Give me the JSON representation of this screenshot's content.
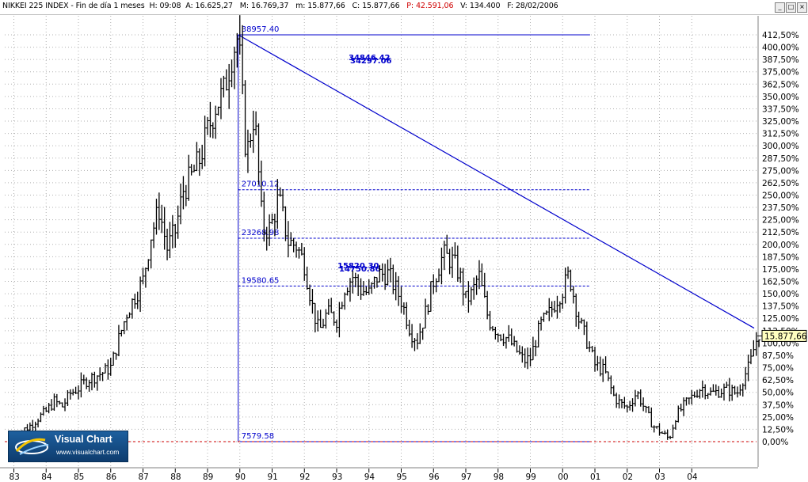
{
  "header": {
    "symbol": "NIKKEI 225 INDEX",
    "period": "Fin de día 1 meses",
    "h_label": "H:",
    "h_value": "09:08",
    "a_label": "A:",
    "a_value": "16.625,27",
    "m_label": "M:",
    "m_value": "16.769,37",
    "min_label": "m:",
    "min_value": "15.877,66",
    "c_label": "C:",
    "c_value": "15.877,66",
    "p_label": "P:",
    "p_value": "42.591,06",
    "v_label": "V:",
    "v_value": "134.400",
    "f_label": "F:",
    "f_value": "28/02/2006"
  },
  "window_buttons": [
    "_",
    "□",
    "×"
  ],
  "logo": {
    "name": "Visual Chart",
    "url": "www.visualchart.com"
  },
  "colors": {
    "bars": "#000000",
    "fib_lines": "#0000cc",
    "zero_line": "#cc0000",
    "price_box": "#ffffc0"
  },
  "chart_data": {
    "type": "ohlc",
    "period": "monthly",
    "y_axis_unit": "percent",
    "y_ticks": [
      "412,50%",
      "400,00%",
      "387,50%",
      "375,00%",
      "362,50%",
      "350,00%",
      "337,50%",
      "325,00%",
      "312,50%",
      "300,00%",
      "287,50%",
      "275,00%",
      "262,50%",
      "250,00%",
      "237,50%",
      "225,00%",
      "212,50%",
      "200,00%",
      "187,50%",
      "175,00%",
      "162,50%",
      "150,00%",
      "137,50%",
      "125,00%",
      "112,50%",
      "100,00%",
      "87,50%",
      "75,00%",
      "62,50%",
      "50,00%",
      "37,50%",
      "25,00%",
      "12,50%",
      "0,00%"
    ],
    "x_ticks": [
      "83",
      "84",
      "85",
      "86",
      "87",
      "88",
      "89",
      "90",
      "91",
      "92",
      "93",
      "94",
      "95",
      "96",
      "97",
      "98",
      "99",
      "00",
      "01",
      "02",
      "03",
      "04"
    ],
    "last_price": "15.877,66",
    "annotations": [
      {
        "label": "38957.40",
        "value": 38957.4
      },
      {
        "label": "27010.12",
        "value": 27010.12
      },
      {
        "label": "23268.98",
        "value": 23268.98
      },
      {
        "label": "19580.65",
        "value": 19580.65
      },
      {
        "label": "7579.58",
        "value": 7579.58
      }
    ],
    "overlap_labels": [
      "34846.42",
      "34297.06",
      "15820.30",
      "14750.86"
    ],
    "trendline": {
      "from": {
        "date": "1989-12",
        "price": 38957.4
      },
      "to": {
        "date": "2006-02",
        "price": 16100
      }
    },
    "series": [
      {
        "values": [
          [
            1983.0,
            8000
          ],
          [
            1983.25,
            8400
          ],
          [
            1983.5,
            8800
          ],
          [
            1983.75,
            9400
          ],
          [
            1984.0,
            9900
          ],
          [
            1984.25,
            10700
          ],
          [
            1984.5,
            10300
          ],
          [
            1984.75,
            11300
          ],
          [
            1985.0,
            11700
          ],
          [
            1985.25,
            12300
          ],
          [
            1985.5,
            12600
          ],
          [
            1985.75,
            12900
          ],
          [
            1986.0,
            13300
          ],
          [
            1986.25,
            15500
          ],
          [
            1986.5,
            17500
          ],
          [
            1986.75,
            18800
          ],
          [
            1987.0,
            20000
          ],
          [
            1987.25,
            23500
          ],
          [
            1987.5,
            25500
          ],
          [
            1987.75,
            22500
          ],
          [
            1988.0,
            23800
          ],
          [
            1988.25,
            27000
          ],
          [
            1988.5,
            28000
          ],
          [
            1988.75,
            29300
          ],
          [
            1989.0,
            31500
          ],
          [
            1989.25,
            33500
          ],
          [
            1989.5,
            34500
          ],
          [
            1989.75,
            37500
          ],
          [
            1989.95,
            38900
          ],
          [
            1990.2,
            29500
          ],
          [
            1990.45,
            33000
          ],
          [
            1990.7,
            24000
          ],
          [
            1990.95,
            24000
          ],
          [
            1991.2,
            26400
          ],
          [
            1991.5,
            23000
          ],
          [
            1991.75,
            22700
          ],
          [
            1992.0,
            21300
          ],
          [
            1992.25,
            18000
          ],
          [
            1992.45,
            16000
          ],
          [
            1992.7,
            17500
          ],
          [
            1993.0,
            17000
          ],
          [
            1993.25,
            19500
          ],
          [
            1993.5,
            20300
          ],
          [
            1993.75,
            19300
          ],
          [
            1994.0,
            19000
          ],
          [
            1994.3,
            20500
          ],
          [
            1994.6,
            20500
          ],
          [
            1994.8,
            19500
          ],
          [
            1995.0,
            18500
          ],
          [
            1995.3,
            16000
          ],
          [
            1995.5,
            15500
          ],
          [
            1995.75,
            17500
          ],
          [
            1996.0,
            20000
          ],
          [
            1996.3,
            22000
          ],
          [
            1996.6,
            21500
          ],
          [
            1996.8,
            20500
          ],
          [
            1997.0,
            18500
          ],
          [
            1997.2,
            19000
          ],
          [
            1997.4,
            20500
          ],
          [
            1997.7,
            17000
          ],
          [
            1998.0,
            16000
          ],
          [
            1998.3,
            15500
          ],
          [
            1998.6,
            14500
          ],
          [
            1998.8,
            13800
          ],
          [
            1999.0,
            14000
          ],
          [
            1999.3,
            16500
          ],
          [
            1999.6,
            17500
          ],
          [
            1999.8,
            18500
          ],
          [
            2000.0,
            19300
          ],
          [
            2000.2,
            20500
          ],
          [
            2000.5,
            17000
          ],
          [
            2000.8,
            15000
          ],
          [
            2001.0,
            13500
          ],
          [
            2001.3,
            13000
          ],
          [
            2001.6,
            11000
          ],
          [
            2001.8,
            10500
          ],
          [
            2002.0,
            10200
          ],
          [
            2002.3,
            11400
          ],
          [
            2002.6,
            9800
          ],
          [
            2002.8,
            8800
          ],
          [
            2003.0,
            8400
          ],
          [
            2003.3,
            7800
          ],
          [
            2003.5,
            9500
          ],
          [
            2003.8,
            10500
          ],
          [
            2004.0,
            11000
          ],
          [
            2004.3,
            11800
          ],
          [
            2004.6,
            11300
          ],
          [
            2004.9,
            11500
          ],
          [
            2005.1,
            11600
          ],
          [
            2005.4,
            11300
          ],
          [
            2005.6,
            12500
          ],
          [
            2005.8,
            13500
          ],
          [
            2005.95,
            15000
          ],
          [
            2006.1,
            16100
          ]
        ]
      }
    ]
  }
}
